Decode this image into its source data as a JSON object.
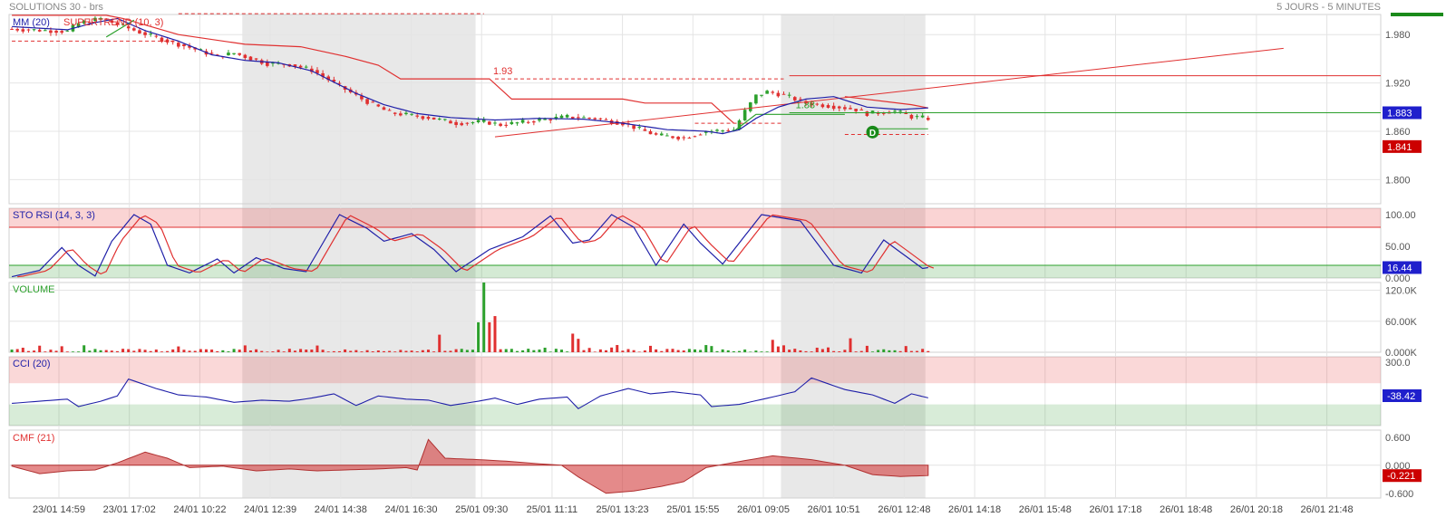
{
  "header": {
    "title": "SOLUTIONS 30 - brs",
    "period": "5 JOURS - 5 MINUTES"
  },
  "colors": {
    "up": "#2ca02c",
    "down": "#e03030",
    "ma": "#1f1fa8",
    "supertrend_up": "#2ca02c",
    "supertrend_down": "#e03030",
    "shade": "#e8e8e8",
    "grid": "#e4e4e4"
  },
  "chart_data": [
    {
      "type": "candlestick",
      "panel": "price",
      "legend": [
        "MM (20)",
        "SUPERTREND (10, 3)"
      ],
      "y_ticks": [
        "1.980",
        "1.920",
        "1.860",
        "1.800"
      ],
      "ylim": [
        1.77,
        2.005
      ],
      "x_ticks": [
        "23/01 14:59",
        "23/01 17:02",
        "24/01 10:22",
        "24/01 12:39",
        "24/01 14:38",
        "24/01 16:30",
        "25/01 09:30",
        "25/01 11:11",
        "25/01 13:23",
        "25/01 15:55",
        "26/01 09:05",
        "26/01 10:51",
        "26/01 12:48",
        "26/01 14:18",
        "26/01 15:48",
        "26/01 17:18",
        "26/01 18:48",
        "26/01 20:18",
        "26/01 21:48"
      ],
      "path": [
        [
          0,
          1.987
        ],
        [
          10,
          1.984
        ],
        [
          12,
          1.994
        ],
        [
          16,
          2.0
        ],
        [
          23,
          1.983
        ],
        [
          27,
          1.974
        ],
        [
          32,
          1.964
        ],
        [
          37,
          1.953
        ],
        [
          40,
          1.957
        ],
        [
          46,
          1.944
        ],
        [
          50,
          1.943
        ],
        [
          54,
          1.936
        ],
        [
          58,
          1.92
        ],
        [
          63,
          1.9
        ],
        [
          68,
          1.883
        ],
        [
          75,
          1.877
        ],
        [
          80,
          1.87
        ],
        [
          85,
          1.872
        ],
        [
          88,
          1.868
        ],
        [
          95,
          1.874
        ],
        [
          100,
          1.878
        ],
        [
          105,
          1.876
        ],
        [
          110,
          1.87
        ],
        [
          116,
          1.855
        ],
        [
          121,
          1.852
        ],
        [
          125,
          1.86
        ],
        [
          130,
          1.862
        ],
        [
          132,
          1.885
        ],
        [
          134,
          1.904
        ],
        [
          136,
          1.909
        ],
        [
          139,
          1.905
        ],
        [
          143,
          1.895
        ],
        [
          149,
          1.89
        ],
        [
          152,
          1.887
        ],
        [
          154,
          1.882
        ],
        [
          159,
          1.885
        ],
        [
          162,
          1.878
        ],
        [
          165,
          1.876
        ]
      ],
      "ma_path": [
        [
          0,
          1.99
        ],
        [
          10,
          1.986
        ],
        [
          15,
          1.995
        ],
        [
          19,
          2.0
        ],
        [
          24,
          1.985
        ],
        [
          30,
          1.972
        ],
        [
          36,
          1.955
        ],
        [
          42,
          1.948
        ],
        [
          48,
          1.945
        ],
        [
          54,
          1.935
        ],
        [
          58,
          1.921
        ],
        [
          62,
          1.907
        ],
        [
          67,
          1.893
        ],
        [
          73,
          1.882
        ],
        [
          79,
          1.877
        ],
        [
          87,
          1.874
        ],
        [
          95,
          1.876
        ],
        [
          103,
          1.875
        ],
        [
          110,
          1.87
        ],
        [
          118,
          1.862
        ],
        [
          125,
          1.86
        ],
        [
          128,
          1.857
        ],
        [
          131,
          1.862
        ],
        [
          134,
          1.876
        ],
        [
          138,
          1.89
        ],
        [
          143,
          1.9
        ],
        [
          148,
          1.903
        ],
        [
          154,
          1.89
        ],
        [
          160,
          1.887
        ],
        [
          165,
          1.889
        ]
      ],
      "supertrend": [
        {
          "color": "down",
          "points": [
            [
              0,
              2.004
            ],
            [
              17,
              2.004
            ],
            [
              20,
              2.0
            ],
            [
              30,
              1.98
            ],
            [
              42,
              1.968
            ],
            [
              52,
              1.965
            ],
            [
              60,
              1.953
            ],
            [
              66,
              1.942
            ],
            [
              70,
              1.925
            ],
            [
              86,
              1.925
            ],
            [
              90,
              1.9
            ],
            [
              110,
              1.9
            ],
            [
              114,
              1.895
            ],
            [
              126,
              1.895
            ],
            [
              130,
              1.87
            ]
          ]
        },
        {
          "color": "up",
          "points": [
            [
              17,
              1.977
            ],
            [
              22,
              1.998
            ]
          ]
        },
        {
          "color": "up",
          "points": [
            [
              130,
              1.86
            ],
            [
              134,
              1.881
            ],
            [
              150,
              1.881
            ]
          ]
        },
        {
          "color": "down",
          "points": [
            [
              150,
              1.903
            ],
            [
              162,
              1.893
            ],
            [
              165,
              1.889
            ]
          ]
        }
      ],
      "levels": [
        {
          "color": "down",
          "dashed": true,
          "y": 2.006,
          "from": 30,
          "to": 85
        },
        {
          "color": "down",
          "dashed": true,
          "y": 1.972,
          "from": 0,
          "to": 30
        },
        {
          "color": "down",
          "dashed": true,
          "y": 1.925,
          "from": 87,
          "to": 139,
          "label": "1.93"
        },
        {
          "color": "up",
          "dashed": false,
          "y": 1.883,
          "from": 140,
          "to": 247,
          "label": "1.88"
        },
        {
          "color": "down",
          "dashed": true,
          "y": 1.87,
          "from": 123,
          "to": 139
        },
        {
          "color": "up",
          "dashed": false,
          "y": 1.863,
          "from": 155,
          "to": 165
        },
        {
          "color": "down",
          "dashed": true,
          "y": 1.856,
          "from": 150,
          "to": 165
        },
        {
          "color": "down",
          "dashed": false,
          "y": 1.929,
          "from": 140,
          "to": 247
        }
      ],
      "trendline": {
        "x0": 87,
        "y0": 1.853,
        "x1": 229,
        "y1": 1.963
      },
      "price_tags": [
        {
          "value": "1.883",
          "y": 1.883,
          "color": "#1f1fcc"
        },
        {
          "value": "1.841",
          "y": 1.841,
          "color": "#cc0000"
        }
      ],
      "marker": {
        "label": "D",
        "x": 155,
        "y": 1.859
      }
    },
    {
      "type": "line",
      "panel": "stochrsi",
      "legend": "STO RSI (14, 3, 3)",
      "y_ticks": [
        "100.00",
        "50.00",
        "0.000"
      ],
      "ylim": [
        0,
        110
      ],
      "bands": {
        "upper": 80,
        "lower": 20
      },
      "current": "16.44",
      "series_points": [
        [
          0,
          2
        ],
        [
          5,
          12
        ],
        [
          9,
          48
        ],
        [
          12,
          20
        ],
        [
          15,
          3
        ],
        [
          18,
          58
        ],
        [
          22,
          100
        ],
        [
          25,
          85
        ],
        [
          28,
          20
        ],
        [
          32,
          8
        ],
        [
          37,
          30
        ],
        [
          40,
          8
        ],
        [
          44,
          32
        ],
        [
          49,
          15
        ],
        [
          53,
          10
        ],
        [
          59,
          100
        ],
        [
          64,
          78
        ],
        [
          67,
          58
        ],
        [
          72,
          70
        ],
        [
          76,
          45
        ],
        [
          80,
          10
        ],
        [
          86,
          45
        ],
        [
          92,
          65
        ],
        [
          97,
          98
        ],
        [
          101,
          55
        ],
        [
          104,
          60
        ],
        [
          108,
          100
        ],
        [
          112,
          80
        ],
        [
          116,
          20
        ],
        [
          121,
          85
        ],
        [
          124,
          55
        ],
        [
          128,
          22
        ],
        [
          135,
          100
        ],
        [
          142,
          90
        ],
        [
          148,
          20
        ],
        [
          153,
          8
        ],
        [
          157,
          60
        ],
        [
          164,
          15
        ],
        [
          165,
          16.44
        ]
      ]
    },
    {
      "type": "bar",
      "panel": "volume",
      "legend": "VOLUME",
      "y_ticks": [
        "120.0K",
        "60.00K",
        "0.000K"
      ],
      "ylim": [
        0,
        135000
      ]
    },
    {
      "type": "line",
      "panel": "cci",
      "legend": "CCI (20)",
      "y_ticks": [
        "300.0"
      ],
      "ylim": [
        -300,
        350
      ],
      "bands": {
        "upper": 100,
        "lower": -100
      },
      "current": "-38.42",
      "series_points": [
        [
          0,
          -90
        ],
        [
          5,
          -70
        ],
        [
          10,
          -50
        ],
        [
          12,
          -120
        ],
        [
          16,
          -70
        ],
        [
          19,
          -20
        ],
        [
          21,
          140
        ],
        [
          26,
          50
        ],
        [
          30,
          -10
        ],
        [
          35,
          -30
        ],
        [
          40,
          -80
        ],
        [
          45,
          -60
        ],
        [
          50,
          -70
        ],
        [
          54,
          -40
        ],
        [
          58,
          0
        ],
        [
          62,
          -110
        ],
        [
          66,
          -20
        ],
        [
          71,
          -50
        ],
        [
          75,
          -60
        ],
        [
          79,
          -110
        ],
        [
          84,
          -70
        ],
        [
          87,
          -40
        ],
        [
          91,
          -100
        ],
        [
          95,
          -50
        ],
        [
          100,
          -30
        ],
        [
          102,
          -140
        ],
        [
          106,
          -20
        ],
        [
          111,
          50
        ],
        [
          115,
          0
        ],
        [
          119,
          20
        ],
        [
          124,
          -10
        ],
        [
          126,
          -120
        ],
        [
          131,
          -100
        ],
        [
          137,
          -30
        ],
        [
          141,
          20
        ],
        [
          144,
          150
        ],
        [
          150,
          40
        ],
        [
          155,
          -10
        ],
        [
          159,
          -90
        ],
        [
          162,
          0
        ],
        [
          165,
          -38.42
        ]
      ]
    },
    {
      "type": "area",
      "panel": "cmf",
      "legend": "CMF (21)",
      "y_ticks": [
        "0.600",
        "0.000",
        "-0.600"
      ],
      "ylim": [
        -0.7,
        0.75
      ],
      "current": "-0.221",
      "series_points": [
        [
          0,
          -0.02
        ],
        [
          5,
          -0.18
        ],
        [
          10,
          -0.12
        ],
        [
          15,
          -0.1
        ],
        [
          19,
          0.05
        ],
        [
          24,
          0.28
        ],
        [
          28,
          0.15
        ],
        [
          32,
          -0.05
        ],
        [
          38,
          -0.02
        ],
        [
          44,
          -0.12
        ],
        [
          50,
          -0.08
        ],
        [
          55,
          -0.12
        ],
        [
          60,
          -0.1
        ],
        [
          66,
          -0.08
        ],
        [
          71,
          -0.05
        ],
        [
          73,
          -0.1
        ],
        [
          75,
          0.55
        ],
        [
          78,
          0.15
        ],
        [
          84,
          0.12
        ],
        [
          90,
          0.08
        ],
        [
          95,
          0.03
        ],
        [
          99,
          0.0
        ],
        [
          102,
          -0.25
        ],
        [
          107,
          -0.6
        ],
        [
          112,
          -0.55
        ],
        [
          117,
          -0.45
        ],
        [
          121,
          -0.35
        ],
        [
          125,
          -0.05
        ],
        [
          131,
          0.08
        ],
        [
          137,
          0.2
        ],
        [
          144,
          0.12
        ],
        [
          150,
          0.0
        ],
        [
          155,
          -0.2
        ],
        [
          160,
          -0.24
        ],
        [
          165,
          -0.221
        ]
      ]
    }
  ]
}
